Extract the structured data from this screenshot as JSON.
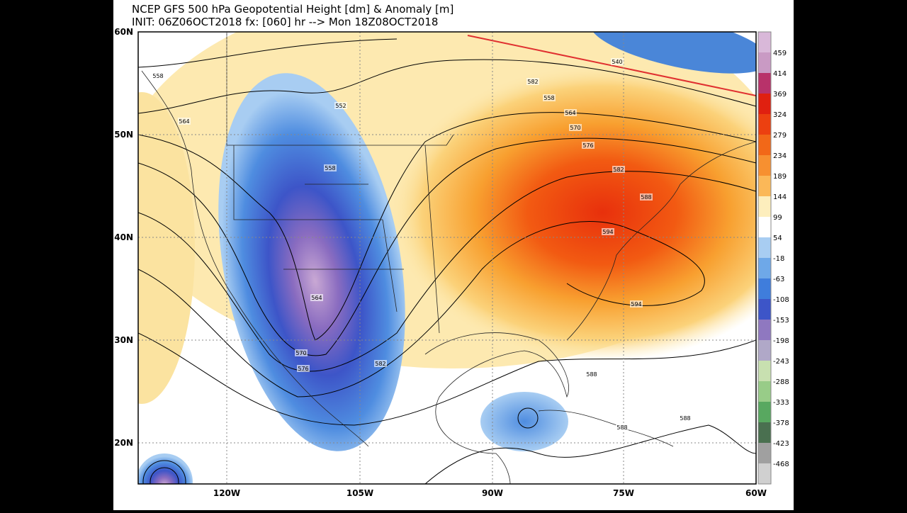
{
  "header": {
    "title": "NCEP GFS 500 hPa Geopotential Height [dm] & Anomaly [m]",
    "subtitle": "INIT: 06Z06OCT2018 fx: [060] hr --> Mon 18Z08OCT2018"
  },
  "latitude_labels": [
    "60N",
    "50N",
    "40N",
    "30N",
    "20N"
  ],
  "longitude_labels": [
    "120W",
    "105W",
    "90W",
    "75W",
    "60W"
  ],
  "colorbar": {
    "labels": [
      459,
      414,
      369,
      324,
      279,
      234,
      189,
      144,
      99,
      54,
      -18,
      -63,
      -108,
      -153,
      -198,
      -243,
      -288,
      -333,
      -378,
      -423,
      -468
    ]
  },
  "contour_labels": [
    "558",
    "564",
    "552",
    "558",
    "582",
    "558",
    "564",
    "570",
    "576",
    "582",
    "588",
    "594",
    "594",
    "564",
    "570",
    "576",
    "582",
    "588",
    "588",
    "588",
    "540"
  ]
}
